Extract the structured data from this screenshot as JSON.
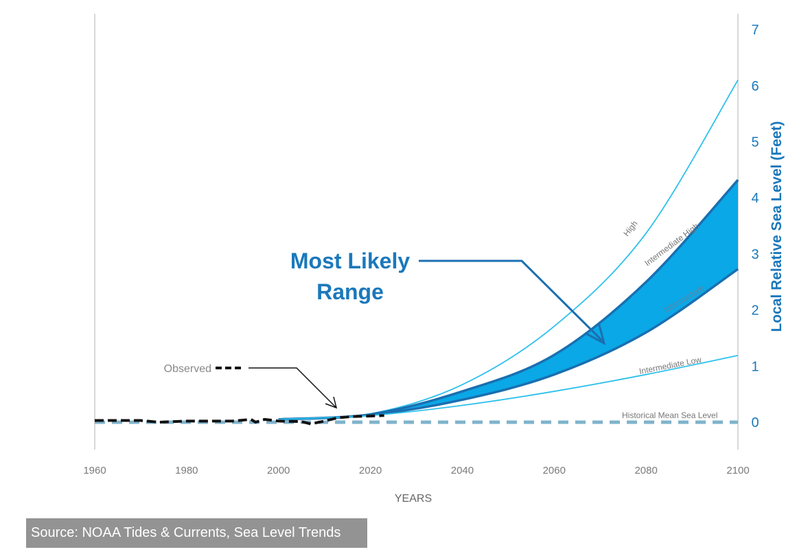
{
  "chart_data": {
    "type": "line",
    "xlabel": "YEARS",
    "ylabel": "Local Relative Sea Level (Feet)",
    "xlim": [
      1960,
      2100
    ],
    "ylim": [
      -0.5,
      7
    ],
    "x_ticks": [
      "1960",
      "1980",
      "2000",
      "2020",
      "2040",
      "2060",
      "2080",
      "2100"
    ],
    "y_ticks": [
      "0",
      "1",
      "2",
      "3",
      "4",
      "5",
      "6",
      "7"
    ],
    "y_axis_side": "right",
    "grid": false,
    "series": [
      {
        "name": "High",
        "x": [
          2000,
          2020,
          2040,
          2060,
          2080,
          2100
        ],
        "y": [
          0.05,
          0.15,
          0.67,
          1.71,
          3.37,
          6.1
        ],
        "color": "#2cc0ec"
      },
      {
        "name": "Intermediate High",
        "x": [
          2000,
          2020,
          2040,
          2060,
          2080,
          2100
        ],
        "y": [
          0.05,
          0.14,
          0.55,
          1.2,
          2.5,
          4.32
        ],
        "color": "#1a6fb0"
      },
      {
        "name": "Intermediate",
        "x": [
          2000,
          2020,
          2040,
          2060,
          2080,
          2100
        ],
        "y": [
          0.05,
          0.13,
          0.4,
          0.85,
          1.6,
          2.73
        ],
        "color": "#1a6fb0"
      },
      {
        "name": "Intermediate Low",
        "x": [
          2000,
          2020,
          2040,
          2060,
          2080,
          2100
        ],
        "y": [
          0.05,
          0.12,
          0.3,
          0.55,
          0.85,
          1.19
        ],
        "color": "#2cc0ec"
      },
      {
        "name": "Historical Mean Sea Level",
        "x": [
          1960,
          2100
        ],
        "y": [
          0,
          0
        ],
        "color": "#7fb3cc"
      },
      {
        "name": "Observed",
        "x": [
          1960,
          1970,
          1974,
          1980,
          1990,
          1994,
          1995,
          1997,
          2000,
          2005,
          2007,
          2010,
          2013,
          2016,
          2020,
          2023
        ],
        "y": [
          0.03,
          0.03,
          0.0,
          0.02,
          0.02,
          0.05,
          0.0,
          0.05,
          0.02,
          0.01,
          -0.03,
          0.02,
          0.08,
          0.1,
          0.11,
          0.12
        ],
        "color": "#111111"
      }
    ],
    "band": {
      "name": "Most Likely Range",
      "upper": "Intermediate High",
      "lower": "Intermediate",
      "color": "#0aa8e6"
    },
    "annotations": {
      "most_likely_line1": "Most Likely",
      "most_likely_line2": "Range",
      "observed": "Observed"
    }
  },
  "source": "Source: NOAA Tides & Currents, Sea Level Trends"
}
